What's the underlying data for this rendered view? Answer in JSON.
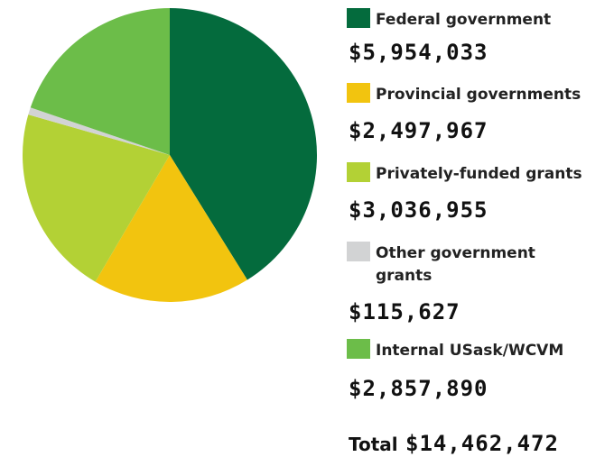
{
  "chart_data": {
    "type": "pie",
    "categories": [
      "Federal government",
      "Provincial governments",
      "Privately-funded grants",
      "Other government grants",
      "Internal USask/WCVM"
    ],
    "values": [
      5954033,
      2497967,
      3036955,
      115627,
      2857890
    ],
    "value_labels": [
      "$5,954,033",
      "$2,497,967",
      "$3,036,955",
      "$115,627",
      "$2,857,890"
    ],
    "colors": [
      "#046b3d",
      "#f2c40f",
      "#b3d135",
      "#d2d3d4",
      "#6cbd49"
    ],
    "total_label": "Total",
    "total_value": 14462472,
    "total_value_label": "$14,462,472"
  }
}
